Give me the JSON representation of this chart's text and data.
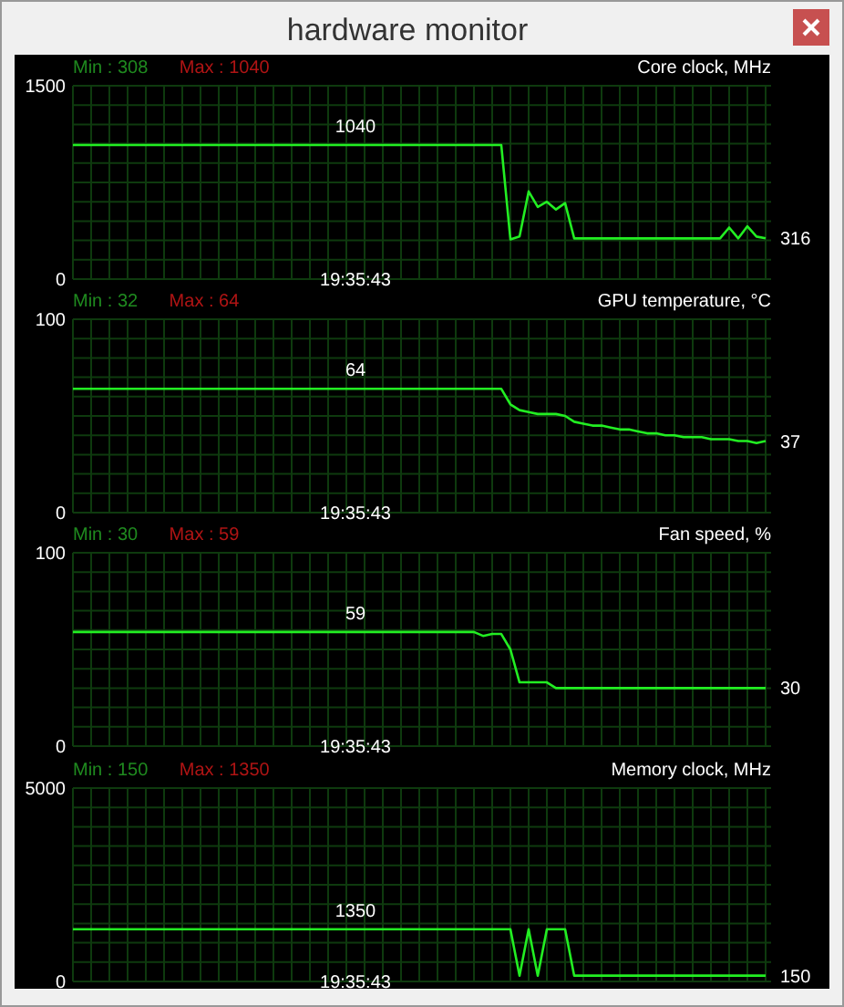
{
  "chart_data": [
    {
      "type": "other",
      "title": "hardware monitor"
    },
    {
      "type": "line",
      "title": "Core clock, MHz",
      "annotations": [
        "Min : 308",
        "Max : 1040",
        "19:35:43"
      ],
      "ylim": [
        0,
        1500
      ],
      "yticks": [
        0,
        {
          "value": 150,
          "label": null
        },
        {
          "value": 300,
          "label": null
        },
        {
          "value": 450,
          "label": null
        },
        {
          "value": 600,
          "label": null
        },
        {
          "value": 750,
          "label": null
        },
        {
          "value": 900,
          "label": null
        },
        {
          "value": 1050,
          "label": null
        },
        {
          "value": 1200,
          "label": null
        },
        {
          "value": 1350,
          "label": null
        },
        1500
      ],
      "grid": true,
      "color": "#22ee22",
      "categories": [
        null,
        null,
        null,
        null,
        null,
        null,
        null,
        null,
        null,
        null,
        null,
        null,
        null,
        null,
        null,
        null,
        null,
        null,
        null,
        null,
        null,
        null,
        null,
        null,
        null,
        null,
        null,
        null,
        null,
        null,
        null,
        null,
        null,
        null,
        null,
        null,
        null,
        null,
        null,
        null,
        null,
        null,
        null,
        null,
        null,
        null,
        null,
        null,
        null,
        null,
        null,
        null,
        null,
        null,
        null,
        null,
        null,
        null,
        null,
        null,
        null,
        null,
        null,
        null,
        null,
        null,
        null,
        null,
        null,
        null,
        null,
        null,
        null,
        null,
        null,
        null,
        null
      ],
      "values": [
        1040,
        1040,
        1040,
        1040,
        1040,
        1040,
        1040,
        1040,
        1040,
        1040,
        1040,
        1040,
        1040,
        1040,
        1040,
        1040,
        1040,
        1040,
        1040,
        1040,
        1040,
        1040,
        1040,
        1040,
        1040,
        1040,
        1040,
        1040,
        1040,
        1040,
        1040,
        1040,
        1040,
        1040,
        1040,
        1040,
        1040,
        1040,
        1040,
        1040,
        1040,
        1040,
        1040,
        1040,
        1040,
        1040,
        1040,
        1040,
        308,
        330,
        680,
        560,
        600,
        540,
        590,
        316,
        316,
        316,
        316,
        316,
        316,
        316,
        316,
        316,
        316,
        316,
        316,
        316,
        316,
        316,
        316,
        316,
        400,
        316,
        410,
        330,
        316
      ],
      "value_labels": [
        null,
        null,
        null,
        null,
        null,
        null,
        null,
        null,
        null,
        null,
        null,
        null,
        null,
        null,
        null,
        null,
        null,
        null,
        null,
        null,
        null,
        null,
        null,
        null,
        null,
        null,
        null,
        null,
        null,
        null,
        null,
        "1040",
        null,
        null,
        null,
        null,
        null,
        null,
        null,
        null,
        null,
        null,
        null,
        null,
        null,
        null,
        null,
        null,
        null,
        null,
        null,
        null,
        null,
        null,
        null,
        null,
        null,
        null,
        null,
        null,
        null,
        null,
        null,
        null,
        null,
        null,
        null,
        null,
        null,
        null,
        null,
        null,
        null,
        null,
        null,
        null,
        "316"
      ]
    },
    {
      "type": "line",
      "title": "GPU temperature, °C",
      "annotations": [
        "Min : 32",
        "Max : 64",
        "19:35:43"
      ],
      "ylim": [
        0,
        100
      ],
      "yticks": [
        0,
        {
          "value": 10,
          "label": null
        },
        {
          "value": 20,
          "label": null
        },
        {
          "value": 30,
          "label": null
        },
        {
          "value": 40,
          "label": null
        },
        {
          "value": 50,
          "label": null
        },
        {
          "value": 60,
          "label": null
        },
        {
          "value": 70,
          "label": null
        },
        {
          "value": 80,
          "label": null
        },
        {
          "value": 90,
          "label": null
        },
        100
      ],
      "grid": true,
      "color": "#22ee22",
      "categories": [
        null,
        null,
        null,
        null,
        null,
        null,
        null,
        null,
        null,
        null,
        null,
        null,
        null,
        null,
        null,
        null,
        null,
        null,
        null,
        null,
        null,
        null,
        null,
        null,
        null,
        null,
        null,
        null,
        null,
        null,
        null,
        null,
        null,
        null,
        null,
        null,
        null,
        null,
        null,
        null,
        null,
        null,
        null,
        null,
        null,
        null,
        null,
        null,
        null,
        null,
        null,
        null,
        null,
        null,
        null,
        null,
        null,
        null,
        null,
        null,
        null,
        null,
        null,
        null,
        null,
        null,
        null,
        null,
        null,
        null,
        null,
        null,
        null,
        null,
        null,
        null,
        null
      ],
      "values": [
        64,
        64,
        64,
        64,
        64,
        64,
        64,
        64,
        64,
        64,
        64,
        64,
        64,
        64,
        64,
        64,
        64,
        64,
        64,
        64,
        64,
        64,
        64,
        64,
        64,
        64,
        64,
        64,
        64,
        64,
        64,
        64,
        64,
        64,
        64,
        64,
        64,
        64,
        64,
        64,
        64,
        64,
        64,
        64,
        64,
        64,
        64,
        64,
        56,
        53,
        52,
        51,
        51,
        51,
        50,
        47,
        46,
        45,
        45,
        44,
        43,
        43,
        42,
        41,
        41,
        40,
        40,
        39,
        39,
        39,
        38,
        38,
        38,
        37,
        37,
        36,
        37
      ],
      "value_labels": [
        null,
        null,
        null,
        null,
        null,
        null,
        null,
        null,
        null,
        null,
        null,
        null,
        null,
        null,
        null,
        null,
        null,
        null,
        null,
        null,
        null,
        null,
        null,
        null,
        null,
        null,
        null,
        null,
        null,
        null,
        null,
        "64",
        null,
        null,
        null,
        null,
        null,
        null,
        null,
        null,
        null,
        null,
        null,
        null,
        null,
        null,
        null,
        null,
        null,
        null,
        null,
        null,
        null,
        null,
        null,
        null,
        null,
        null,
        null,
        null,
        null,
        null,
        null,
        null,
        null,
        null,
        null,
        null,
        null,
        null,
        null,
        null,
        null,
        null,
        null,
        null,
        "37"
      ]
    },
    {
      "type": "line",
      "title": "Fan speed, %",
      "annotations": [
        "Min : 30",
        "Max : 59",
        "19:35:43"
      ],
      "ylim": [
        0,
        100
      ],
      "yticks": [
        0,
        {
          "value": 10,
          "label": null
        },
        {
          "value": 20,
          "label": null
        },
        {
          "value": 30,
          "label": null
        },
        {
          "value": 40,
          "label": null
        },
        {
          "value": 50,
          "label": null
        },
        {
          "value": 60,
          "label": null
        },
        {
          "value": 70,
          "label": null
        },
        {
          "value": 80,
          "label": null
        },
        {
          "value": 90,
          "label": null
        },
        100
      ],
      "grid": true,
      "color": "#22ee22",
      "categories": [
        null,
        null,
        null,
        null,
        null,
        null,
        null,
        null,
        null,
        null,
        null,
        null,
        null,
        null,
        null,
        null,
        null,
        null,
        null,
        null,
        null,
        null,
        null,
        null,
        null,
        null,
        null,
        null,
        null,
        null,
        null,
        null,
        null,
        null,
        null,
        null,
        null,
        null,
        null,
        null,
        null,
        null,
        null,
        null,
        null,
        null,
        null,
        null,
        null,
        null,
        null,
        null,
        null,
        null,
        null,
        null,
        null,
        null,
        null,
        null,
        null,
        null,
        null,
        null,
        null,
        null,
        null,
        null,
        null,
        null,
        null,
        null,
        null,
        null,
        null,
        null,
        null
      ],
      "values": [
        59,
        59,
        59,
        59,
        59,
        59,
        59,
        59,
        59,
        59,
        59,
        59,
        59,
        59,
        59,
        59,
        59,
        59,
        59,
        59,
        59,
        59,
        59,
        59,
        59,
        59,
        59,
        59,
        59,
        59,
        59,
        59,
        59,
        59,
        59,
        59,
        59,
        59,
        59,
        59,
        59,
        59,
        59,
        59,
        59,
        57,
        58,
        58,
        50,
        33,
        33,
        33,
        33,
        30,
        30,
        30,
        30,
        30,
        30,
        30,
        30,
        30,
        30,
        30,
        30,
        30,
        30,
        30,
        30,
        30,
        30,
        30,
        30,
        30,
        30,
        30,
        30
      ],
      "value_labels": [
        null,
        null,
        null,
        null,
        null,
        null,
        null,
        null,
        null,
        null,
        null,
        null,
        null,
        null,
        null,
        null,
        null,
        null,
        null,
        null,
        null,
        null,
        null,
        null,
        null,
        null,
        null,
        null,
        null,
        null,
        null,
        "59",
        null,
        null,
        null,
        null,
        null,
        null,
        null,
        null,
        null,
        null,
        null,
        null,
        null,
        null,
        null,
        null,
        null,
        null,
        null,
        null,
        null,
        null,
        null,
        null,
        null,
        null,
        null,
        null,
        null,
        null,
        null,
        null,
        null,
        null,
        null,
        null,
        null,
        null,
        null,
        null,
        null,
        null,
        null,
        null,
        "30"
      ]
    },
    {
      "type": "line",
      "title": "Memory clock, MHz",
      "annotations": [
        "Min : 150",
        "Max : 1350",
        "19:35:43"
      ],
      "ylim": [
        0,
        5000
      ],
      "yticks": [
        0,
        {
          "value": 500,
          "label": null
        },
        {
          "value": 1000,
          "label": null
        },
        {
          "value": 1500,
          "label": null
        },
        {
          "value": 2000,
          "label": null
        },
        {
          "value": 2500,
          "label": null
        },
        {
          "value": 3000,
          "label": null
        },
        {
          "value": 3500,
          "label": null
        },
        {
          "value": 4000,
          "label": null
        },
        {
          "value": 4500,
          "label": null
        },
        5000
      ],
      "grid": true,
      "color": "#22ee22",
      "categories": [
        null,
        null,
        null,
        null,
        null,
        null,
        null,
        null,
        null,
        null,
        null,
        null,
        null,
        null,
        null,
        null,
        null,
        null,
        null,
        null,
        null,
        null,
        null,
        null,
        null,
        null,
        null,
        null,
        null,
        null,
        null,
        null,
        null,
        null,
        null,
        null,
        null,
        null,
        null,
        null,
        null,
        null,
        null,
        null,
        null,
        null,
        null,
        null,
        null,
        null,
        null,
        null,
        null,
        null,
        null,
        null,
        null,
        null,
        null,
        null,
        null,
        null,
        null,
        null,
        null,
        null,
        null,
        null,
        null,
        null,
        null,
        null,
        null,
        null,
        null,
        null,
        null
      ],
      "values": [
        1350,
        1350,
        1350,
        1350,
        1350,
        1350,
        1350,
        1350,
        1350,
        1350,
        1350,
        1350,
        1350,
        1350,
        1350,
        1350,
        1350,
        1350,
        1350,
        1350,
        1350,
        1350,
        1350,
        1350,
        1350,
        1350,
        1350,
        1350,
        1350,
        1350,
        1350,
        1350,
        1350,
        1350,
        1350,
        1350,
        1350,
        1350,
        1350,
        1350,
        1350,
        1350,
        1350,
        1350,
        1350,
        1350,
        1350,
        1350,
        1350,
        150,
        1350,
        150,
        1350,
        1350,
        1350,
        150,
        150,
        150,
        150,
        150,
        150,
        150,
        150,
        150,
        150,
        150,
        150,
        150,
        150,
        150,
        150,
        150,
        150,
        150,
        150,
        150,
        150
      ],
      "value_labels": [
        null,
        null,
        null,
        null,
        null,
        null,
        null,
        null,
        null,
        null,
        null,
        null,
        null,
        null,
        null,
        null,
        null,
        null,
        null,
        null,
        null,
        null,
        null,
        null,
        null,
        null,
        null,
        null,
        null,
        null,
        null,
        "1350",
        null,
        null,
        null,
        null,
        null,
        null,
        null,
        null,
        null,
        null,
        null,
        null,
        null,
        null,
        null,
        null,
        null,
        null,
        null,
        null,
        null,
        null,
        null,
        null,
        null,
        null,
        null,
        null,
        null,
        null,
        null,
        null,
        null,
        null,
        null,
        null,
        null,
        null,
        null,
        null,
        null,
        null,
        null,
        null,
        "150"
      ]
    }
  ]
}
